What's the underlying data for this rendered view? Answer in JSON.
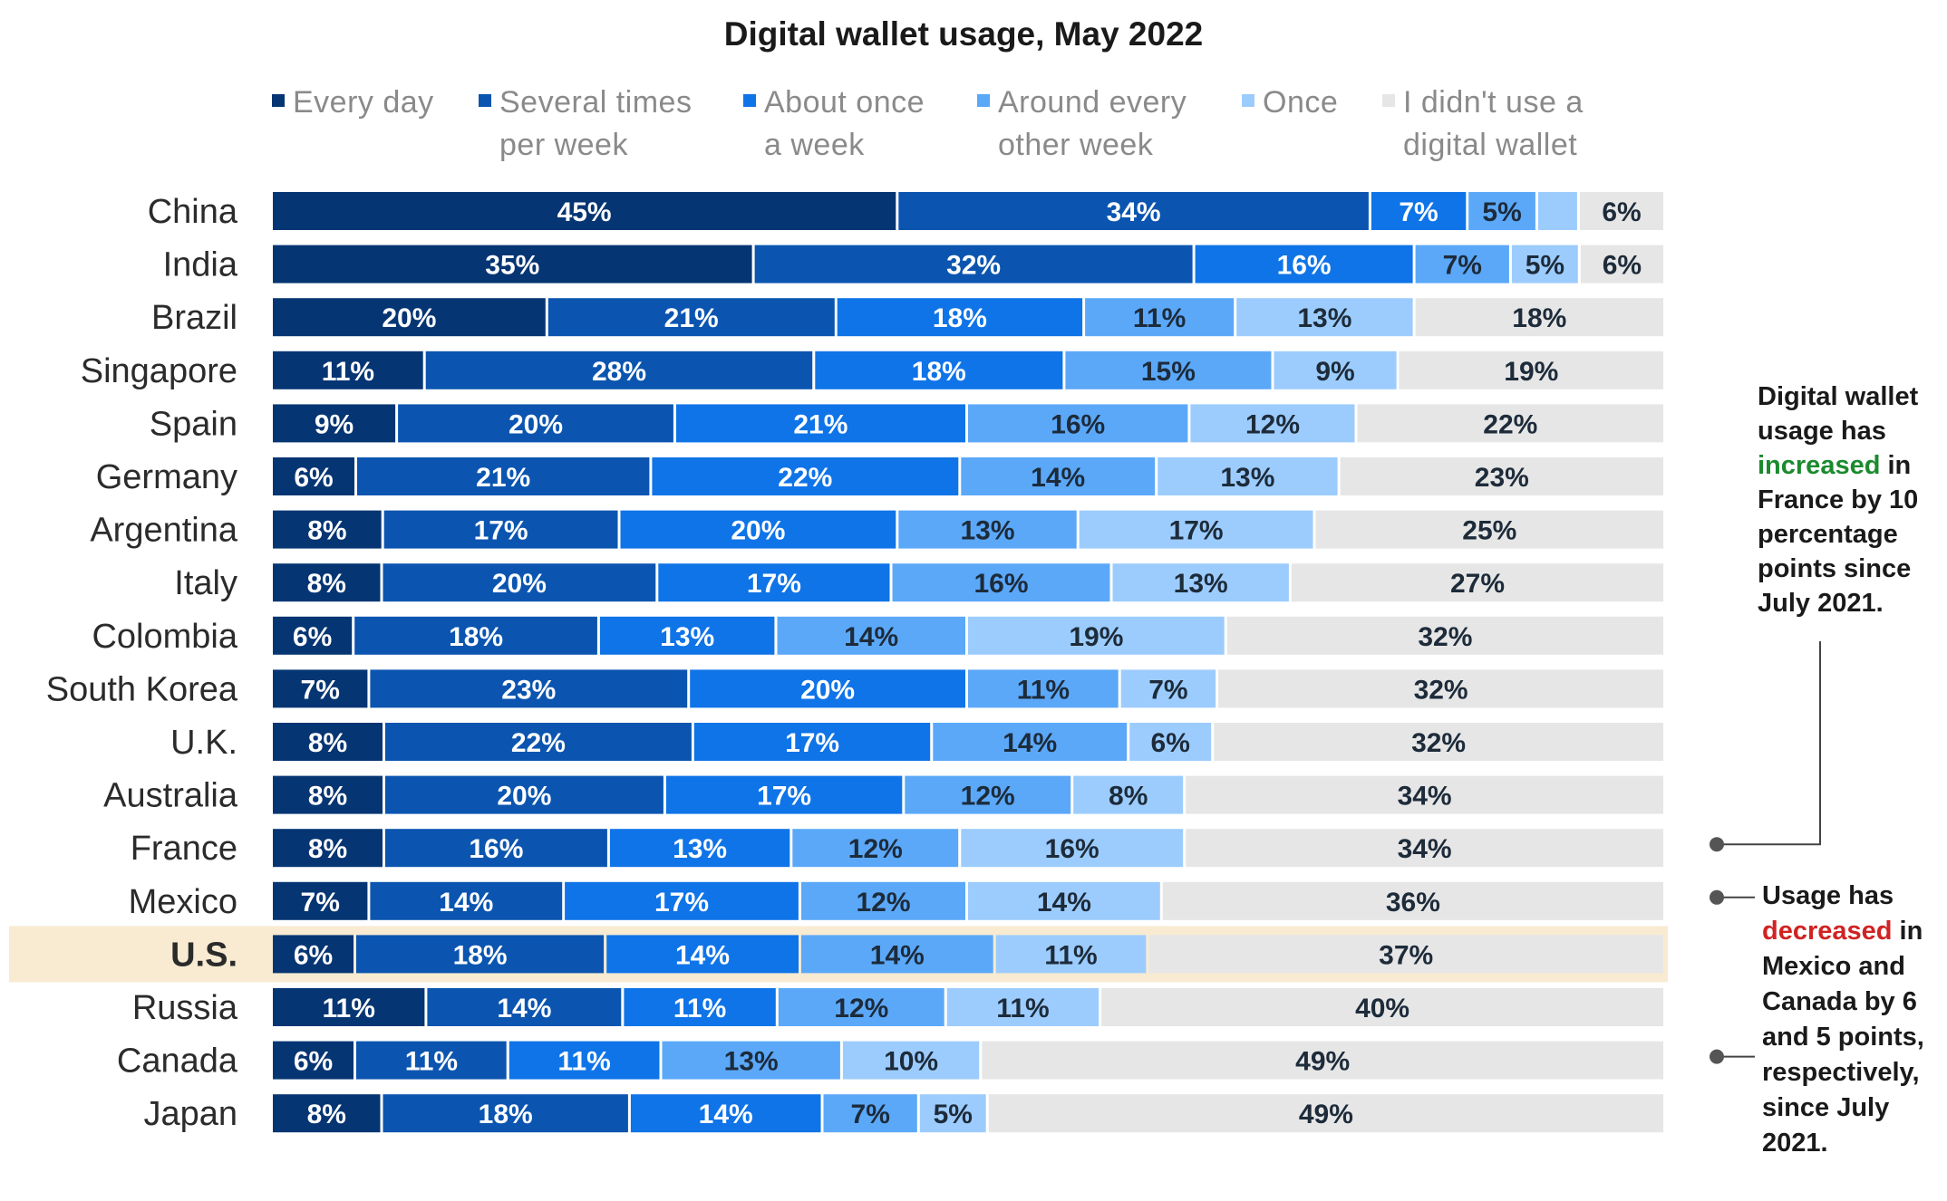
{
  "chart_data": {
    "type": "bar",
    "orientation": "horizontal",
    "stacked": true,
    "normalized": true,
    "title": "Digital wallet usage, May 2022",
    "legend_placement": "top",
    "highlighted_category": "U.S.",
    "highlight_color": "#f8ebd2",
    "value_suffix": "%",
    "categories": [
      "China",
      "India",
      "Brazil",
      "Singapore",
      "Spain",
      "Germany",
      "Argentina",
      "Italy",
      "Colombia",
      "South Korea",
      "U.K.",
      "Australia",
      "France",
      "Mexico",
      "U.S.",
      "Russia",
      "Canada",
      "Japan"
    ],
    "series": [
      {
        "name": "Every day",
        "label_lines": [
          "Every day"
        ],
        "color": "#063573",
        "text_color": "#ffffff",
        "values": [
          45,
          35,
          20,
          11,
          9,
          6,
          8,
          8,
          6,
          7,
          8,
          8,
          8,
          7,
          6,
          11,
          6,
          8
        ],
        "labels": [
          "45%",
          "35%",
          "20%",
          "11%",
          "9%",
          "6%",
          "8%",
          "8%",
          "6%",
          "7%",
          "8%",
          "8%",
          "8%",
          "7%",
          "6%",
          "11%",
          "6%",
          "8%"
        ]
      },
      {
        "name": "Several times per week",
        "label_lines": [
          "Several times",
          "per week"
        ],
        "color": "#0b55b0",
        "text_color": "#ffffff",
        "values": [
          34,
          32,
          21,
          28,
          20,
          21,
          17,
          20,
          18,
          23,
          22,
          20,
          16,
          14,
          18,
          14,
          11,
          18
        ],
        "labels": [
          "34%",
          "32%",
          "21%",
          "28%",
          "20%",
          "21%",
          "17%",
          "20%",
          "18%",
          "23%",
          "22%",
          "20%",
          "16%",
          "14%",
          "18%",
          "14%",
          "11%",
          "18%"
        ]
      },
      {
        "name": "About once a week",
        "label_lines": [
          "About once",
          "a week"
        ],
        "color": "#0f74e8",
        "text_color": "#ffffff",
        "values": [
          7,
          16,
          18,
          18,
          21,
          22,
          20,
          17,
          13,
          20,
          17,
          17,
          13,
          17,
          14,
          11,
          11,
          14
        ],
        "labels": [
          "7%",
          "16%",
          "18%",
          "18%",
          "21%",
          "22%",
          "20%",
          "17%",
          "13%",
          "20%",
          "17%",
          "17%",
          "13%",
          "17%",
          "14%",
          "11%",
          "11%",
          "14%"
        ]
      },
      {
        "name": "Around every other week",
        "label_lines": [
          "Around every",
          "other week"
        ],
        "color": "#5ba8f9",
        "text_color": "#1d2b3a",
        "values": [
          5,
          7,
          11,
          15,
          16,
          14,
          13,
          16,
          14,
          11,
          14,
          12,
          12,
          12,
          14,
          12,
          13,
          7
        ],
        "labels": [
          "5%",
          "7%",
          "11%",
          "15%",
          "16%",
          "14%",
          "13%",
          "16%",
          "14%",
          "11%",
          "14%",
          "12%",
          "12%",
          "12%",
          "14%",
          "12%",
          "13%",
          "7%"
        ]
      },
      {
        "name": "Once",
        "label_lines": [
          "Once"
        ],
        "color": "#9cccfd",
        "text_color": "#1d2b3a",
        "values": [
          3,
          5,
          13,
          9,
          12,
          13,
          17,
          13,
          19,
          7,
          6,
          8,
          16,
          14,
          11,
          11,
          10,
          5
        ],
        "labels": [
          "",
          "5%",
          "13%",
          "9%",
          "12%",
          "13%",
          "17%",
          "13%",
          "19%",
          "7%",
          "6%",
          "8%",
          "16%",
          "14%",
          "11%",
          "11%",
          "10%",
          "5%"
        ]
      },
      {
        "name": "I didn't use a digital wallet",
        "label_lines": [
          "I didn't use a",
          "digital wallet"
        ],
        "color": "#e6e6e6",
        "text_color": "#1d2b3a",
        "values": [
          6,
          6,
          18,
          19,
          22,
          23,
          25,
          27,
          32,
          32,
          32,
          34,
          34,
          36,
          37,
          40,
          49,
          49
        ],
        "labels": [
          "6%",
          "6%",
          "18%",
          "19%",
          "22%",
          "23%",
          "25%",
          "27%",
          "32%",
          "32%",
          "32%",
          "34%",
          "34%",
          "36%",
          "37%",
          "40%",
          "49%",
          "49%"
        ]
      }
    ],
    "annotations": [
      {
        "target": "France",
        "lines": [
          [
            {
              "text": "Digital wallet"
            }
          ],
          [
            {
              "text": "usage has"
            }
          ],
          [
            {
              "text": "increased",
              "color": "#1b8a2e"
            },
            {
              "text": " in"
            }
          ],
          [
            {
              "text": "France by 10"
            }
          ],
          [
            {
              "text": "percentage"
            }
          ],
          [
            {
              "text": "points since"
            }
          ],
          [
            {
              "text": "July 2021."
            }
          ]
        ]
      },
      {
        "targets": [
          "Mexico",
          "Canada"
        ],
        "lines": [
          [
            {
              "text": "Usage has"
            }
          ],
          [
            {
              "text": "decreased",
              "color": "#d02323"
            },
            {
              "text": " in"
            }
          ],
          [
            {
              "text": "Mexico and"
            }
          ],
          [
            {
              "text": "Canada by 6"
            }
          ],
          [
            {
              "text": "and 5 points,"
            }
          ],
          [
            {
              "text": "respectively,"
            }
          ],
          [
            {
              "text": "since July"
            }
          ],
          [
            {
              "text": "2021."
            }
          ]
        ]
      }
    ]
  }
}
